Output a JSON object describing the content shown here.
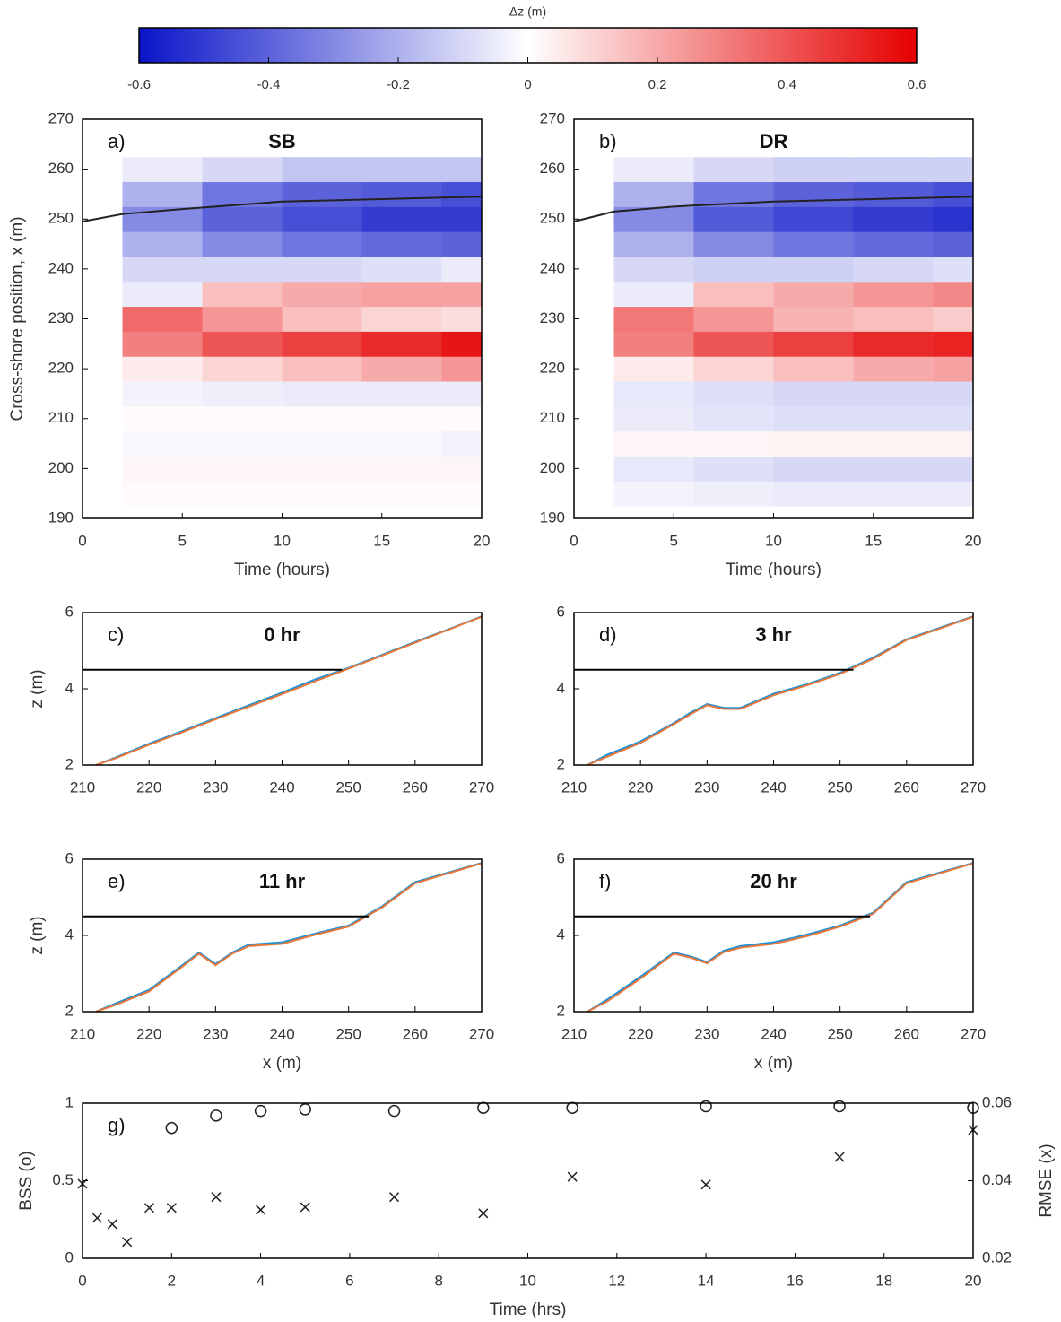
{
  "chart_data": [
    {
      "type": "colorbar",
      "label": "Δz (m)",
      "xlim": [
        -0.6,
        0.6
      ],
      "xticks": [
        -0.6,
        -0.4,
        -0.2,
        0,
        0.2,
        0.4,
        0.6
      ],
      "colormap": [
        "#0a14c8",
        "#ffffff",
        "#e60000"
      ]
    },
    {
      "type": "heatmap",
      "panel": "a)",
      "title": "SB",
      "ylabel": "Cross-shore position, x (m)",
      "xlabel": "Time (hours)",
      "xlim": [
        0,
        20
      ],
      "xticks": [
        0,
        5,
        10,
        15,
        20
      ],
      "ylim": [
        190,
        270
      ],
      "yticks": [
        190,
        200,
        210,
        220,
        230,
        240,
        250,
        260,
        270
      ],
      "x": [
        0,
        4,
        8,
        12,
        16,
        20
      ],
      "y": [
        190,
        195,
        200,
        205,
        210,
        215,
        220,
        225,
        230,
        235,
        240,
        245,
        250,
        255,
        260,
        265,
        270
      ],
      "z": [
        [
          0,
          0,
          0,
          0,
          0,
          0
        ],
        [
          0,
          0.01,
          0.01,
          0.01,
          0.01,
          0.01
        ],
        [
          0,
          0.02,
          0.02,
          0.02,
          0.02,
          0.02
        ],
        [
          0,
          -0.02,
          -0.02,
          -0.02,
          -0.02,
          -0.03
        ],
        [
          0,
          0.01,
          0.01,
          0.01,
          0.01,
          0.01
        ],
        [
          0,
          -0.03,
          -0.04,
          -0.05,
          -0.05,
          -0.05
        ],
        [
          0,
          0.05,
          0.1,
          0.15,
          0.2,
          0.25
        ],
        [
          0,
          0.3,
          0.4,
          0.45,
          0.5,
          0.55
        ],
        [
          0,
          0.35,
          0.25,
          0.15,
          0.1,
          0.08
        ],
        [
          0,
          -0.05,
          0.15,
          0.2,
          0.22,
          0.22
        ],
        [
          0,
          -0.1,
          -0.1,
          -0.1,
          -0.08,
          -0.05
        ],
        [
          0,
          -0.2,
          -0.3,
          -0.35,
          -0.38,
          -0.4
        ],
        [
          0,
          -0.3,
          -0.4,
          -0.45,
          -0.5,
          -0.5
        ],
        [
          0,
          -0.2,
          -0.35,
          -0.4,
          -0.42,
          -0.45
        ],
        [
          0,
          -0.05,
          -0.1,
          -0.15,
          -0.15,
          -0.15
        ],
        [
          0,
          0,
          0,
          0,
          0,
          0
        ],
        [
          0,
          0,
          0,
          0,
          0,
          0
        ]
      ],
      "line": {
        "color": "#222222",
        "x": [
          0,
          2,
          5,
          10,
          15,
          20
        ],
        "values": [
          249.5,
          251,
          252,
          253.5,
          254,
          254.5
        ]
      }
    },
    {
      "type": "heatmap",
      "panel": "b)",
      "title": "DR",
      "xlabel": "Time (hours)",
      "xlim": [
        0,
        20
      ],
      "xticks": [
        0,
        5,
        10,
        15,
        20
      ],
      "ylim": [
        190,
        270
      ],
      "yticks": [
        190,
        200,
        210,
        220,
        230,
        240,
        250,
        260,
        270
      ],
      "x": [
        0,
        4,
        8,
        12,
        16,
        20
      ],
      "y": [
        190,
        195,
        200,
        205,
        210,
        215,
        220,
        225,
        230,
        235,
        240,
        245,
        250,
        255,
        260,
        265,
        270
      ],
      "z": [
        [
          0,
          0,
          0,
          0,
          0,
          0
        ],
        [
          0,
          -0.03,
          -0.04,
          -0.05,
          -0.05,
          -0.05
        ],
        [
          0,
          -0.06,
          -0.08,
          -0.1,
          -0.1,
          -0.1
        ],
        [
          0,
          0.02,
          0.02,
          0.03,
          0.03,
          0.03
        ],
        [
          0,
          -0.05,
          -0.07,
          -0.08,
          -0.08,
          -0.08
        ],
        [
          0,
          -0.06,
          -0.08,
          -0.1,
          -0.1,
          -0.1
        ],
        [
          0,
          0.05,
          0.1,
          0.15,
          0.2,
          0.22
        ],
        [
          0,
          0.3,
          0.4,
          0.45,
          0.5,
          0.52
        ],
        [
          0,
          0.32,
          0.25,
          0.18,
          0.15,
          0.12
        ],
        [
          0,
          -0.05,
          0.15,
          0.2,
          0.25,
          0.28
        ],
        [
          0,
          -0.1,
          -0.12,
          -0.12,
          -0.1,
          -0.08
        ],
        [
          0,
          -0.2,
          -0.3,
          -0.35,
          -0.38,
          -0.4
        ],
        [
          0,
          -0.3,
          -0.42,
          -0.47,
          -0.5,
          -0.52
        ],
        [
          0,
          -0.2,
          -0.35,
          -0.4,
          -0.42,
          -0.45
        ],
        [
          0,
          -0.05,
          -0.1,
          -0.12,
          -0.12,
          -0.12
        ],
        [
          0,
          0,
          0,
          0,
          0,
          0
        ],
        [
          0,
          0,
          0,
          0,
          0,
          0
        ]
      ],
      "line": {
        "color": "#222222",
        "x": [
          0,
          2,
          5,
          10,
          15,
          20
        ],
        "values": [
          249.5,
          251.5,
          252.5,
          253.5,
          254,
          254.5
        ]
      }
    },
    {
      "type": "line",
      "panel": "c)",
      "title": "0 hr",
      "ylabel": "z (m)",
      "xlim": [
        210,
        270
      ],
      "xticks": [
        210,
        220,
        230,
        240,
        250,
        260,
        270
      ],
      "ylim": [
        2,
        6
      ],
      "yticks": [
        2,
        4,
        6
      ],
      "x": [
        212,
        215,
        220,
        225,
        227.5,
        230,
        232.5,
        235,
        240,
        245,
        250,
        255,
        260,
        265,
        270
      ],
      "series": [
        {
          "color": "#1f8fd6",
          "values": [
            2.0,
            2.2,
            2.56,
            2.89,
            3.06,
            3.23,
            3.4,
            3.57,
            3.9,
            4.25,
            4.55,
            4.89,
            5.23,
            5.56,
            5.9
          ]
        },
        {
          "color": "#e8773a",
          "values": [
            2.0,
            2.18,
            2.53,
            2.86,
            3.03,
            3.2,
            3.37,
            3.53,
            3.86,
            4.2,
            4.53,
            4.87,
            5.21,
            5.55,
            5.89
          ]
        },
        {
          "color": "#000000",
          "x": [
            210,
            249
          ],
          "values": [
            4.5,
            4.5
          ]
        }
      ]
    },
    {
      "type": "line",
      "panel": "d)",
      "title": "3 hr",
      "xlim": [
        210,
        270
      ],
      "xticks": [
        210,
        220,
        230,
        240,
        250,
        260,
        270
      ],
      "ylim": [
        2,
        6
      ],
      "yticks": [
        2,
        4,
        6
      ],
      "x": [
        212,
        215,
        220,
        225,
        227.5,
        230,
        232.5,
        235,
        240,
        245,
        250,
        255,
        260,
        265,
        270
      ],
      "series": [
        {
          "color": "#1f8fd6",
          "values": [
            2.0,
            2.27,
            2.62,
            3.1,
            3.37,
            3.6,
            3.5,
            3.5,
            3.87,
            4.12,
            4.42,
            4.82,
            5.3,
            5.6,
            5.9
          ]
        },
        {
          "color": "#e8773a",
          "values": [
            2.0,
            2.22,
            2.58,
            3.07,
            3.33,
            3.57,
            3.47,
            3.47,
            3.83,
            4.09,
            4.39,
            4.79,
            5.28,
            5.58,
            5.89
          ]
        },
        {
          "color": "#000000",
          "x": [
            210,
            252
          ],
          "values": [
            4.5,
            4.5
          ]
        }
      ]
    },
    {
      "type": "line",
      "panel": "e)",
      "title": "11 hr",
      "ylabel": "z (m)",
      "xlabel": "x (m)",
      "xlim": [
        210,
        270
      ],
      "xticks": [
        210,
        220,
        230,
        240,
        250,
        260,
        270
      ],
      "ylim": [
        2,
        6
      ],
      "yticks": [
        2,
        4,
        6
      ],
      "x": [
        212,
        215,
        220,
        225,
        227.5,
        230,
        232.5,
        235,
        240,
        245,
        250,
        255,
        260,
        265,
        270
      ],
      "series": [
        {
          "color": "#1f8fd6",
          "values": [
            2.0,
            2.22,
            2.57,
            3.22,
            3.55,
            3.25,
            3.55,
            3.76,
            3.82,
            4.05,
            4.26,
            4.76,
            5.4,
            5.65,
            5.9
          ]
        },
        {
          "color": "#e8773a",
          "values": [
            2.0,
            2.18,
            2.53,
            3.18,
            3.52,
            3.22,
            3.52,
            3.72,
            3.78,
            4.02,
            4.23,
            4.73,
            5.37,
            5.63,
            5.89
          ]
        },
        {
          "color": "#000000",
          "x": [
            210,
            253
          ],
          "values": [
            4.5,
            4.5
          ]
        }
      ]
    },
    {
      "type": "line",
      "panel": "f)",
      "title": "20 hr",
      "xlabel": "x (m)",
      "xlim": [
        210,
        270
      ],
      "xticks": [
        210,
        220,
        230,
        240,
        250,
        260,
        270
      ],
      "ylim": [
        2,
        6
      ],
      "yticks": [
        2,
        4,
        6
      ],
      "x": [
        212,
        215,
        220,
        225,
        227.5,
        230,
        232.5,
        235,
        240,
        245,
        250,
        255,
        260,
        265,
        270
      ],
      "series": [
        {
          "color": "#1f8fd6",
          "values": [
            2.0,
            2.32,
            2.92,
            3.55,
            3.45,
            3.3,
            3.6,
            3.72,
            3.82,
            4.02,
            4.26,
            4.6,
            5.4,
            5.65,
            5.9
          ]
        },
        {
          "color": "#e8773a",
          "values": [
            2.0,
            2.27,
            2.87,
            3.52,
            3.42,
            3.27,
            3.56,
            3.68,
            3.78,
            3.98,
            4.23,
            4.57,
            5.37,
            5.63,
            5.89
          ]
        },
        {
          "color": "#000000",
          "x": [
            210,
            254.5
          ],
          "values": [
            4.5,
            4.5
          ]
        }
      ]
    },
    {
      "type": "scatter",
      "panel": "g)",
      "ylabel": "BSS (o)",
      "y2label": "RMSE (x)",
      "xlabel": "Time (hrs)",
      "xlim": [
        0,
        20
      ],
      "xticks": [
        0,
        2,
        4,
        6,
        8,
        10,
        12,
        14,
        16,
        18,
        20
      ],
      "ylim": [
        0,
        1
      ],
      "yticks": [
        0,
        0.5,
        1
      ],
      "y2lim": [
        0.02,
        0.06
      ],
      "y2ticks": [
        0.02,
        0.04,
        0.06
      ],
      "series": [
        {
          "marker": "o",
          "color": "#222222",
          "x": [
            2,
            3,
            4,
            5,
            7,
            9,
            11,
            14,
            17,
            20
          ],
          "values": [
            0.84,
            0.92,
            0.95,
            0.96,
            0.95,
            0.97,
            0.97,
            0.98,
            0.98,
            0.97
          ]
        },
        {
          "marker": "x",
          "axis": "y2",
          "color": "#222222",
          "x": [
            0,
            0.33,
            0.67,
            1,
            1.5,
            2,
            3,
            4,
            5,
            7,
            9,
            11,
            14,
            17,
            20
          ],
          "values": [
            0.0392,
            0.0304,
            0.0288,
            0.0242,
            0.033,
            0.033,
            0.0358,
            0.0325,
            0.0332,
            0.0358,
            0.0316,
            0.041,
            0.039,
            0.0461,
            0.0531
          ]
        }
      ]
    }
  ]
}
